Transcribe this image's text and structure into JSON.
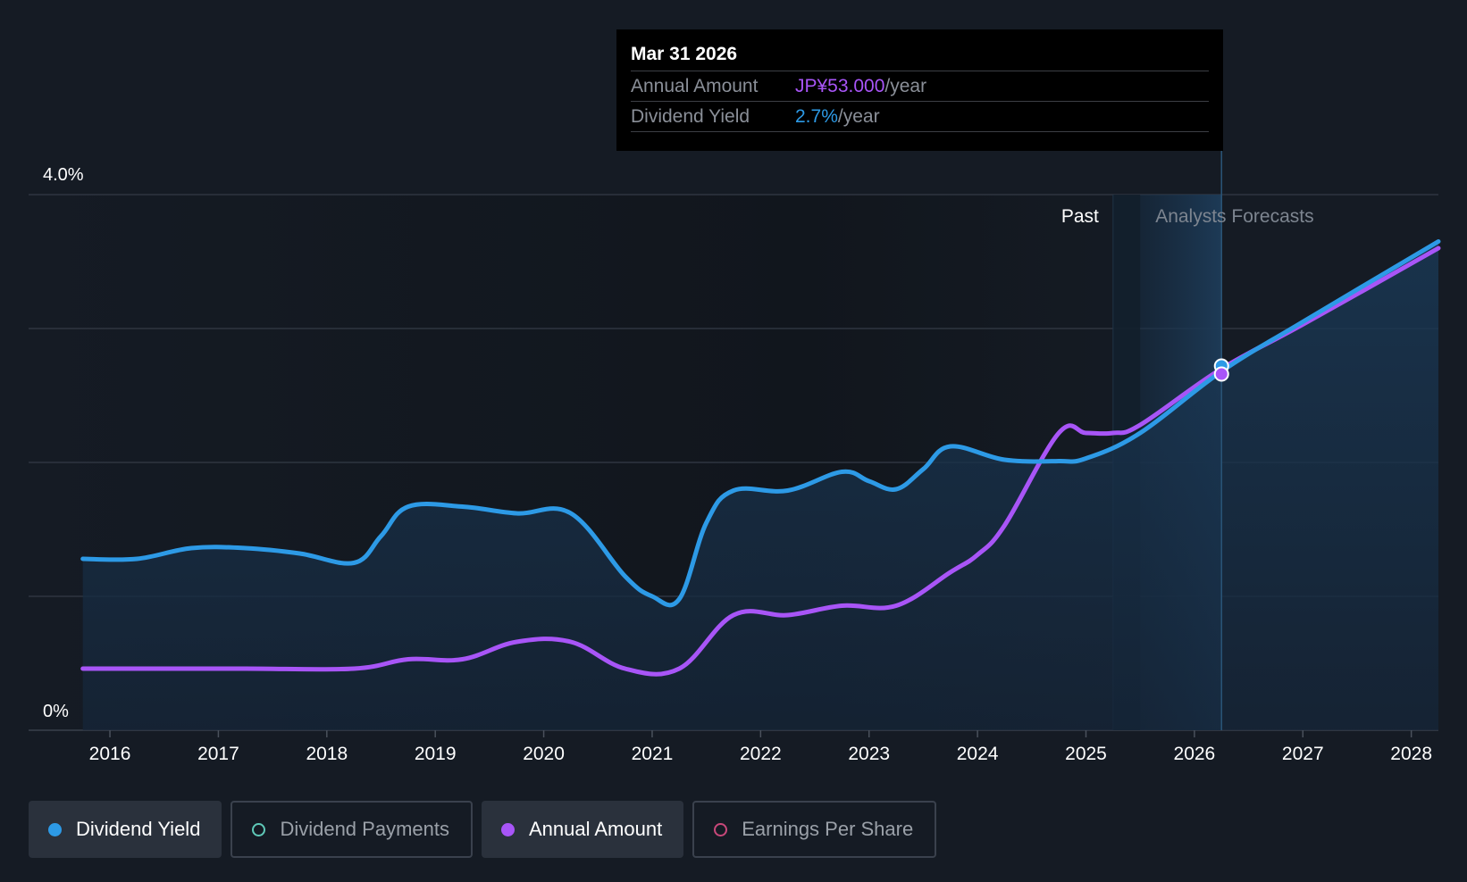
{
  "tooltip": {
    "date": "Mar 31 2026",
    "annual_label": "Annual Amount",
    "annual_value": "JP¥53.000",
    "annual_unit": "/year",
    "yield_label": "Dividend Yield",
    "yield_value": "2.7%",
    "yield_unit": "/year"
  },
  "regions": {
    "past_label": "Past",
    "forecast_label": "Analysts Forecasts"
  },
  "legend": [
    {
      "label": "Dividend Yield",
      "color": "#2d9ae6",
      "active": true,
      "filled": true
    },
    {
      "label": "Dividend Payments",
      "color": "#5fc9b8",
      "active": false,
      "filled": false
    },
    {
      "label": "Annual Amount",
      "color": "#a855f7",
      "active": true,
      "filled": true
    },
    {
      "label": "Earnings Per Share",
      "color": "#c8487a",
      "active": false,
      "filled": false
    }
  ],
  "colors": {
    "background": "#151b24",
    "yield": "#2d9ae6",
    "amount": "#a855f7",
    "grid": "#2e3540",
    "forecast_band": "#1d3a56"
  },
  "chart_data": {
    "type": "line",
    "xlim": [
      2015.25,
      2028.25
    ],
    "ylim": [
      0,
      4.0
    ],
    "y_tick_labels": [
      "0%",
      "4.0%"
    ],
    "x_tick_labels": [
      "2016",
      "2017",
      "2018",
      "2019",
      "2020",
      "2021",
      "2022",
      "2023",
      "2024",
      "2025",
      "2026",
      "2027",
      "2028"
    ],
    "past_forecast_boundary": 2025.5,
    "highlight_x": 2026.25,
    "series": [
      {
        "name": "Dividend Yield",
        "color": "#2d9ae6",
        "points": [
          [
            2015.75,
            1.28
          ],
          [
            2016.25,
            1.28
          ],
          [
            2016.75,
            1.36
          ],
          [
            2017.25,
            1.36
          ],
          [
            2017.75,
            1.32
          ],
          [
            2018.25,
            1.25
          ],
          [
            2018.5,
            1.45
          ],
          [
            2018.75,
            1.67
          ],
          [
            2019.25,
            1.67
          ],
          [
            2019.75,
            1.62
          ],
          [
            2020.25,
            1.62
          ],
          [
            2020.75,
            1.15
          ],
          [
            2021.0,
            1.0
          ],
          [
            2021.25,
            0.98
          ],
          [
            2021.5,
            1.55
          ],
          [
            2021.75,
            1.79
          ],
          [
            2022.25,
            1.79
          ],
          [
            2022.75,
            1.93
          ],
          [
            2023.0,
            1.86
          ],
          [
            2023.25,
            1.8
          ],
          [
            2023.5,
            1.95
          ],
          [
            2023.75,
            2.12
          ],
          [
            2024.25,
            2.02
          ],
          [
            2024.75,
            2.01
          ],
          [
            2025.0,
            2.03
          ],
          [
            2025.5,
            2.22
          ],
          [
            2026.25,
            2.68
          ],
          [
            2027.0,
            3.05
          ],
          [
            2028.25,
            3.65
          ]
        ]
      },
      {
        "name": "Annual Amount",
        "color": "#a855f7",
        "points": [
          [
            2015.75,
            0.46
          ],
          [
            2016.25,
            0.46
          ],
          [
            2017.25,
            0.46
          ],
          [
            2018.25,
            0.46
          ],
          [
            2018.75,
            0.53
          ],
          [
            2019.25,
            0.53
          ],
          [
            2019.75,
            0.66
          ],
          [
            2020.25,
            0.66
          ],
          [
            2020.75,
            0.46
          ],
          [
            2021.25,
            0.46
          ],
          [
            2021.75,
            0.86
          ],
          [
            2022.25,
            0.86
          ],
          [
            2022.75,
            0.93
          ],
          [
            2023.25,
            0.93
          ],
          [
            2023.75,
            1.18
          ],
          [
            2024.0,
            1.31
          ],
          [
            2024.25,
            1.53
          ],
          [
            2024.75,
            2.22
          ],
          [
            2025.0,
            2.22
          ],
          [
            2025.25,
            2.22
          ],
          [
            2025.5,
            2.28
          ],
          [
            2026.25,
            2.7
          ],
          [
            2027.0,
            3.03
          ],
          [
            2028.25,
            3.6
          ]
        ]
      }
    ]
  }
}
